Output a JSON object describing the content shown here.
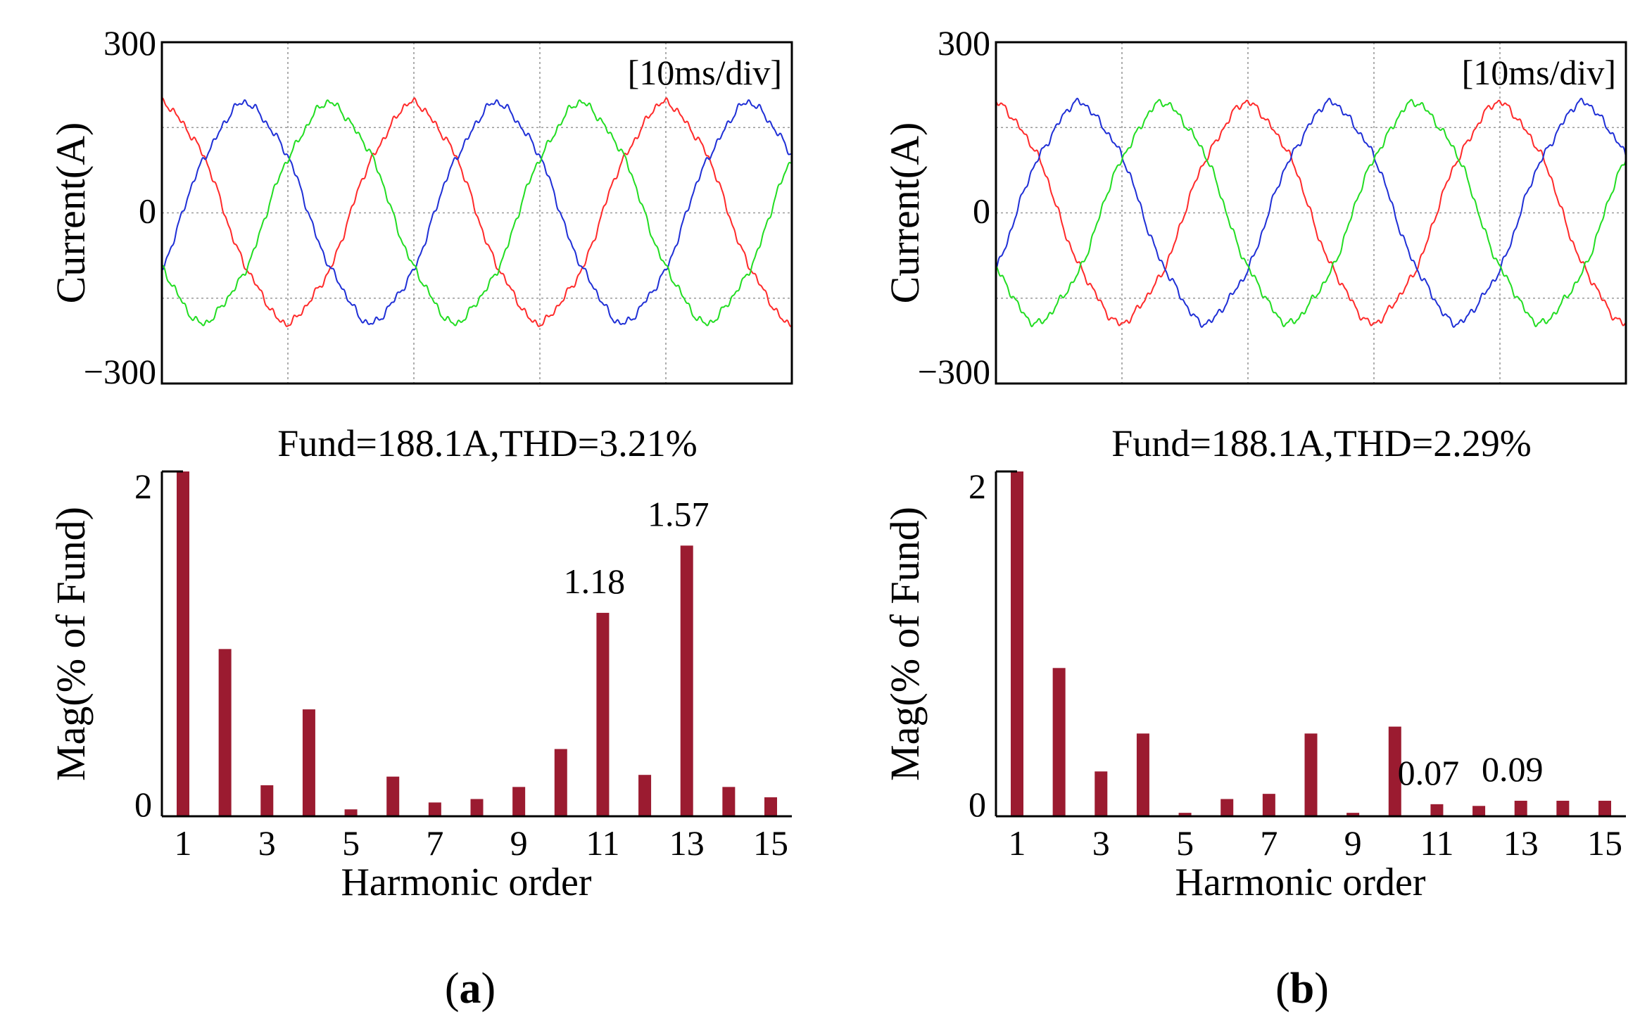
{
  "colors": {
    "phase_a": "#ff2a2a",
    "phase_b": "#1f2fd6",
    "phase_c": "#22dd22",
    "bar": "#9b1b30",
    "grid": "#9a9a9a",
    "axis": "#000000"
  },
  "chart_data": [
    {
      "id": "a-waveform",
      "type": "line",
      "title": "",
      "annotation": "[10ms/div]",
      "ylabel": "Current(A)",
      "xlabel": "",
      "yticks": [
        "300",
        "0",
        "−300"
      ],
      "ylim": [
        -300,
        300
      ],
      "xlim_ms": [
        0,
        50
      ],
      "amplitude": 188.1,
      "grid_y": [
        150,
        -150
      ],
      "grid_x_ms": [
        10,
        20,
        30,
        40
      ],
      "series": [
        {
          "name": "phase-a",
          "color": "#ff2a2a",
          "phase_deg": 90
        },
        {
          "name": "phase-b",
          "color": "#1f2fd6",
          "phase_deg": -30
        },
        {
          "name": "phase-c",
          "color": "#22dd22",
          "phase_deg": 210
        }
      ]
    },
    {
      "id": "a-spectrum",
      "type": "bar",
      "title": "Fund=188.1A,THD=3.21%",
      "xlabel": "Harmonic order",
      "ylabel": "Mag(% of Fund)",
      "yticks": [
        "2",
        "0"
      ],
      "ylim": [
        0,
        2
      ],
      "xticks": [
        "1",
        "3",
        "5",
        "7",
        "9",
        "11",
        "13",
        "15"
      ],
      "categories": [
        1,
        2,
        3,
        4,
        5,
        6,
        7,
        8,
        9,
        10,
        11,
        12,
        13,
        14,
        15
      ],
      "values": [
        2.0,
        0.97,
        0.18,
        0.62,
        0.04,
        0.23,
        0.08,
        0.1,
        0.17,
        0.39,
        1.18,
        0.24,
        1.57,
        0.17,
        0.11
      ],
      "data_labels": [
        {
          "harmonic": 11,
          "text": "1.18"
        },
        {
          "harmonic": 13,
          "text": "1.57"
        }
      ]
    },
    {
      "id": "b-waveform",
      "type": "line",
      "title": "",
      "annotation": "[10ms/div]",
      "ylabel": "Current(A)",
      "xlabel": "",
      "yticks": [
        "300",
        "0",
        "−300"
      ],
      "ylim": [
        -300,
        300
      ],
      "xlim_ms": [
        0,
        50
      ],
      "amplitude": 188.1,
      "grid_y": [
        150,
        -150
      ],
      "grid_x_ms": [
        10,
        20,
        30,
        40
      ],
      "series": [
        {
          "name": "phase-a",
          "color": "#ff2a2a",
          "phase_deg": 90
        },
        {
          "name": "phase-b",
          "color": "#1f2fd6",
          "phase_deg": -30
        },
        {
          "name": "phase-c",
          "color": "#22dd22",
          "phase_deg": 210
        }
      ]
    },
    {
      "id": "b-spectrum",
      "type": "bar",
      "title": "Fund=188.1A,THD=2.29%",
      "xlabel": "Harmonic order",
      "ylabel": "Mag(% of Fund)",
      "yticks": [
        "2",
        "0"
      ],
      "ylim": [
        0,
        2
      ],
      "xticks": [
        "1",
        "3",
        "5",
        "7",
        "9",
        "11",
        "13",
        "15"
      ],
      "categories": [
        1,
        2,
        3,
        4,
        5,
        6,
        7,
        8,
        9,
        10,
        11,
        12,
        13,
        14,
        15
      ],
      "values": [
        2.0,
        0.86,
        0.26,
        0.48,
        0.02,
        0.1,
        0.13,
        0.48,
        0.02,
        0.52,
        0.07,
        0.06,
        0.09,
        0.09,
        0.09
      ],
      "data_labels": [
        {
          "harmonic": 11,
          "text": "0.07"
        },
        {
          "harmonic": 13,
          "text": "0.09"
        }
      ]
    }
  ],
  "panel_labels": [
    "a",
    "b"
  ]
}
